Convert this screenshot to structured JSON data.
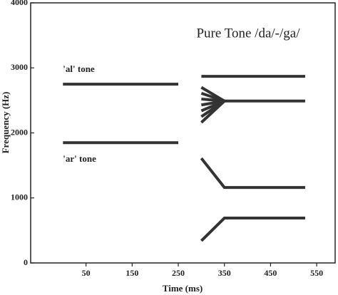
{
  "chart_data": {
    "type": "line",
    "title": "Pure Tone /da/-/ga/",
    "x_label": "Time (ms)",
    "y_label": "Frequency (Hz)",
    "xlim": [
      -70,
      590
    ],
    "ylim": [
      0,
      4000
    ],
    "xticks": [
      50,
      150,
      250,
      350,
      450,
      550
    ],
    "yticks": [
      0,
      1000,
      2000,
      3000,
      4000
    ],
    "series": [
      {
        "name": "'al' tone",
        "color": "#333333",
        "x": [
          0,
          250
        ],
        "values": [
          2750,
          2750
        ]
      },
      {
        "name": "'ar' tone",
        "color": "#333333",
        "x": [
          0,
          250
        ],
        "values": [
          1850,
          1850
        ]
      },
      {
        "color": "#333333",
        "x": [
          300,
          525
        ],
        "values": [
          2870,
          2870
        ]
      },
      {
        "color": "#333333",
        "x": [
          300,
          350,
          525
        ],
        "values": [
          2700,
          2490,
          2490
        ]
      },
      {
        "color": "#333333",
        "x": [
          300,
          350
        ],
        "values": [
          2610,
          2490
        ]
      },
      {
        "color": "#333333",
        "x": [
          300,
          350
        ],
        "values": [
          2520,
          2490
        ]
      },
      {
        "color": "#333333",
        "x": [
          300,
          350
        ],
        "values": [
          2430,
          2490
        ]
      },
      {
        "color": "#333333",
        "x": [
          300,
          350
        ],
        "values": [
          2340,
          2490
        ]
      },
      {
        "color": "#333333",
        "x": [
          300,
          350
        ],
        "values": [
          2250,
          2490
        ]
      },
      {
        "color": "#333333",
        "x": [
          300,
          350
        ],
        "values": [
          2160,
          2490
        ]
      },
      {
        "color": "#333333",
        "x": [
          300,
          350,
          525
        ],
        "values": [
          1610,
          1160,
          1160
        ]
      },
      {
        "color": "#333333",
        "x": [
          300,
          350,
          525
        ],
        "values": [
          340,
          690,
          690
        ]
      }
    ]
  }
}
